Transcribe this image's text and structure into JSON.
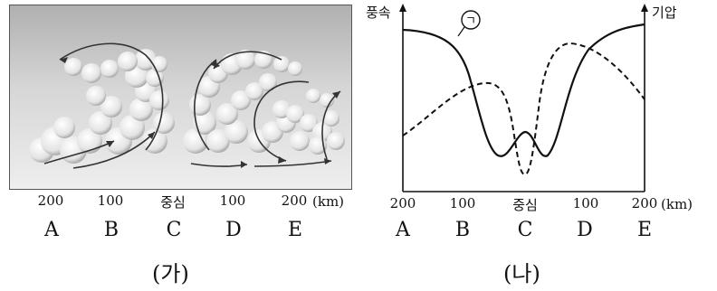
{
  "panel_a": {
    "caption": "(가)",
    "ticks": [
      "200",
      "100",
      "중심",
      "100",
      "200"
    ],
    "unit": "(km)",
    "letters": [
      "A",
      "B",
      "C",
      "D",
      "E"
    ]
  },
  "panel_b": {
    "caption": "(나)",
    "left_axis_label": "풍속",
    "right_axis_label": "기압",
    "curve_marker": "ㄱ",
    "ticks": [
      "200",
      "100",
      "중심",
      "100",
      "200"
    ],
    "unit": "(km)",
    "letters": [
      "A",
      "B",
      "C",
      "D",
      "E"
    ]
  }
}
